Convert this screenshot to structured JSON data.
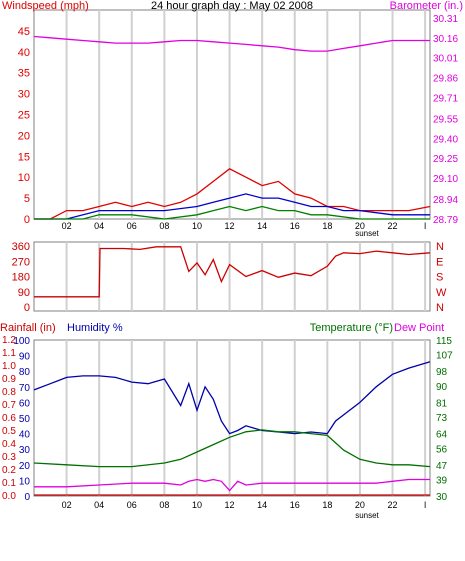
{
  "colors": {
    "wind": "#e00000",
    "wind_avg": "#0000cc",
    "wind_low": "#008000",
    "barometer": "#e000e0",
    "direction": "#cc0000",
    "rain": "#cc0000",
    "humidity": "#0000aa",
    "temperature": "#007000",
    "dewpoint": "#e000e0",
    "grid": "#d0d0d0",
    "frame": "#000000"
  },
  "header": {
    "wind_label": "Windspeed (mph)",
    "title": "24 hour graph day : May 02 2008",
    "baro_label": "Barometer (in.)"
  },
  "hour_ticks": [
    "02",
    "04",
    "06",
    "08",
    "10",
    "12",
    "14",
    "16",
    "18",
    "20",
    "22",
    "l"
  ],
  "sunset_label": "sunset",
  "chart_data": [
    {
      "type": "line",
      "id": "wind-barometer",
      "title": "24 hour graph day : May 02 2008",
      "x_range": [
        0,
        24.3
      ],
      "left_axis": {
        "label": "Windspeed (mph)",
        "ticks": [
          0,
          5,
          10,
          15,
          20,
          25,
          30,
          35,
          40,
          45
        ],
        "range": [
          0,
          50
        ]
      },
      "right_axis": {
        "label": "Barometer (in.)",
        "ticks": [
          "28.79",
          "28.94",
          "29.10",
          "29.25",
          "29.40",
          "29.55",
          "29.71",
          "29.86",
          "30.01",
          "30.16",
          "30.31"
        ],
        "range": [
          28.79,
          30.31
        ]
      },
      "series": [
        {
          "name": "Barometer",
          "axis": "right",
          "x": [
            0,
            1,
            2,
            3,
            4,
            5,
            6,
            7,
            8,
            9,
            10,
            11,
            12,
            13,
            14,
            15,
            16,
            17,
            18,
            19,
            20,
            21,
            22,
            23,
            24.3
          ],
          "values": [
            30.17,
            30.16,
            30.15,
            30.14,
            30.13,
            30.12,
            30.12,
            30.12,
            30.13,
            30.14,
            30.14,
            30.13,
            30.12,
            30.11,
            30.1,
            30.09,
            30.07,
            30.06,
            30.06,
            30.08,
            30.1,
            30.12,
            30.14,
            30.14,
            30.14
          ]
        },
        {
          "name": "Wind gust",
          "axis": "left",
          "x": [
            0,
            1,
            2,
            3,
            4,
            5,
            6,
            7,
            8,
            9,
            10,
            11,
            12,
            13,
            14,
            15,
            16,
            17,
            18,
            19,
            20,
            21,
            22,
            23,
            24.3
          ],
          "values": [
            0,
            0,
            2,
            2,
            3,
            4,
            3,
            4,
            3,
            4,
            6,
            9,
            12,
            10,
            8,
            9,
            6,
            5,
            3,
            3,
            2,
            2,
            2,
            2,
            3
          ]
        },
        {
          "name": "Wind average",
          "axis": "left",
          "x": [
            0,
            2,
            4,
            6,
            8,
            10,
            11,
            12,
            13,
            14,
            15,
            16,
            17,
            18,
            19,
            20,
            22,
            24.3
          ],
          "values": [
            0,
            0,
            2,
            2,
            2,
            3,
            4,
            5,
            6,
            5,
            5,
            4,
            3,
            3,
            2,
            2,
            1,
            1
          ]
        },
        {
          "name": "Wind low",
          "axis": "left",
          "x": [
            0,
            3,
            4,
            6,
            8,
            10,
            11,
            12,
            13,
            14,
            15,
            16,
            17,
            18,
            20,
            22,
            24.3
          ],
          "values": [
            0,
            0,
            1,
            1,
            0,
            1,
            2,
            3,
            2,
            3,
            2,
            2,
            1,
            1,
            0,
            0,
            0
          ]
        }
      ]
    },
    {
      "type": "line",
      "id": "wind-direction",
      "x_range": [
        0,
        24.3
      ],
      "left_axis": {
        "ticks": [
          0,
          90,
          180,
          270,
          360
        ],
        "range": [
          0,
          360
        ]
      },
      "right_axis": {
        "ticks": [
          "N",
          "E",
          "S",
          "W",
          "N"
        ]
      },
      "series": [
        {
          "name": "Wind direction",
          "x": [
            0,
            4.0,
            4.05,
            5.5,
            6.5,
            7.5,
            9.0,
            9.5,
            10.0,
            10.5,
            11.0,
            11.5,
            12.0,
            13.0,
            14.0,
            15.0,
            16.0,
            17.0,
            18.0,
            18.5,
            19.0,
            20.0,
            21.0,
            22.0,
            23.0,
            24.3
          ],
          "values": [
            60,
            60,
            345,
            345,
            340,
            355,
            355,
            210,
            260,
            190,
            280,
            150,
            250,
            180,
            215,
            175,
            200,
            185,
            240,
            300,
            320,
            315,
            330,
            320,
            310,
            320
          ]
        }
      ]
    },
    {
      "type": "line",
      "id": "temp-humidity",
      "x_range": [
        0,
        24.3
      ],
      "left_axis_rain": {
        "label": "Rainfall (in)",
        "ticks": [
          "0.0",
          "0.1",
          "0.2",
          "0.3",
          "0.4",
          "0.5",
          "0.6",
          "0.7",
          "0.8",
          "0.9",
          "1.0",
          "1.1",
          "1.2"
        ]
      },
      "left_axis_humidity": {
        "label": "Humidity %",
        "ticks": [
          0,
          10,
          20,
          30,
          40,
          50,
          60,
          70,
          80,
          90,
          100
        ],
        "range": [
          0,
          100
        ]
      },
      "right_axis": {
        "label": "Temperature (°F)",
        "label2": "Dew Point",
        "ticks": [
          30,
          39,
          47,
          56,
          64,
          73,
          81,
          90,
          98,
          107,
          115
        ],
        "range": [
          30,
          115
        ]
      },
      "series": [
        {
          "name": "Humidity",
          "axis": "humidity",
          "x": [
            0,
            1,
            2,
            3,
            4,
            5,
            6,
            7,
            8,
            9,
            9.5,
            10,
            10.5,
            11,
            11.5,
            12,
            12.5,
            13,
            14,
            15,
            16,
            17,
            18,
            18.5,
            19,
            20,
            21,
            22,
            23,
            24.3
          ],
          "values": [
            68,
            72,
            76,
            77,
            77,
            76,
            73,
            72,
            75,
            58,
            72,
            55,
            70,
            62,
            48,
            40,
            42,
            45,
            42,
            41,
            40,
            41,
            40,
            48,
            52,
            60,
            70,
            78,
            82,
            86
          ]
        },
        {
          "name": "Temperature",
          "axis": "temp",
          "x": [
            0,
            2,
            4,
            6,
            8,
            9,
            10,
            11,
            12,
            13,
            14,
            15,
            16,
            17,
            18,
            19,
            20,
            21,
            22,
            23,
            24.3
          ],
          "values": [
            48,
            47,
            46,
            46,
            48,
            50,
            54,
            58,
            62,
            65,
            66,
            65,
            65,
            64,
            63,
            55,
            50,
            48,
            47,
            47,
            46
          ]
        },
        {
          "name": "Dew Point",
          "axis": "temp",
          "x": [
            0,
            2,
            4,
            6,
            8,
            9,
            9.5,
            10,
            10.5,
            11,
            11.5,
            12,
            12.5,
            13,
            14,
            15,
            16,
            17,
            18,
            19,
            20,
            21,
            22,
            23,
            24.3
          ],
          "values": [
            35,
            35,
            36,
            37,
            37,
            36,
            38,
            39,
            38,
            39,
            38,
            33,
            38,
            36,
            37,
            37,
            37,
            37,
            37,
            37,
            37,
            37,
            38,
            39,
            39
          ]
        },
        {
          "name": "Rainfall",
          "axis": "rain",
          "x": [
            0,
            24.3
          ],
          "values": [
            0.0,
            0.0
          ]
        }
      ]
    }
  ]
}
